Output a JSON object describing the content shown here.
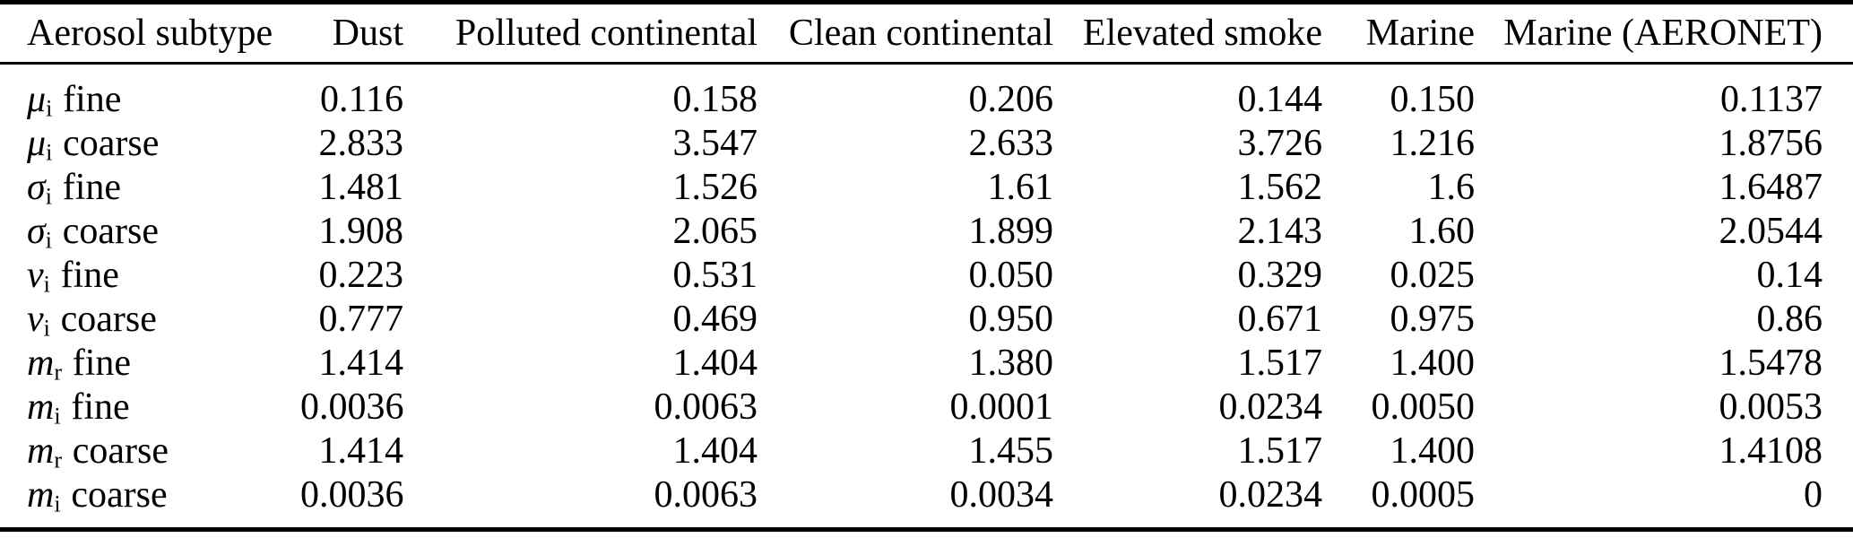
{
  "page": {
    "background_color": "#ffffff",
    "text_color": "#000000"
  },
  "table": {
    "header": [
      "Aerosol subtype",
      "Dust",
      "Polluted continental",
      "Clean continental",
      "Elevated smoke",
      "Marine",
      "Marine (AERONET)"
    ],
    "rows": [
      {
        "symbol": "μ",
        "subscript": "i",
        "mode": "fine",
        "values": [
          "0.116",
          "0.158",
          "0.206",
          "0.144",
          "0.150",
          "0.1137"
        ]
      },
      {
        "symbol": "μ",
        "subscript": "i",
        "mode": "coarse",
        "values": [
          "2.833",
          "3.547",
          "2.633",
          "3.726",
          "1.216",
          "1.8756"
        ]
      },
      {
        "symbol": "σ",
        "subscript": "i",
        "mode": "fine",
        "values": [
          "1.481",
          "1.526",
          "1.61",
          "1.562",
          "1.6",
          "1.6487"
        ]
      },
      {
        "symbol": "σ",
        "subscript": "i",
        "mode": "coarse",
        "values": [
          "1.908",
          "2.065",
          "1.899",
          "2.143",
          "1.60",
          "2.0544"
        ]
      },
      {
        "symbol": "ν",
        "subscript": "i",
        "mode": "fine",
        "values": [
          "0.223",
          "0.531",
          "0.050",
          "0.329",
          "0.025",
          "0.14"
        ]
      },
      {
        "symbol": "ν",
        "subscript": "i",
        "mode": "coarse",
        "values": [
          "0.777",
          "0.469",
          "0.950",
          "0.671",
          "0.975",
          "0.86"
        ]
      },
      {
        "symbol": "m",
        "subscript": "r",
        "mode": "fine",
        "values": [
          "1.414",
          "1.404",
          "1.380",
          "1.517",
          "1.400",
          "1.5478"
        ]
      },
      {
        "symbol": "m",
        "subscript": "i",
        "mode": "fine",
        "values": [
          "0.0036",
          "0.0063",
          "0.0001",
          "0.0234",
          "0.0050",
          "0.0053"
        ]
      },
      {
        "symbol": "m",
        "subscript": "r",
        "mode": "coarse",
        "values": [
          "1.414",
          "1.404",
          "1.455",
          "1.517",
          "1.400",
          "1.4108"
        ]
      },
      {
        "symbol": "m",
        "subscript": "i",
        "mode": "coarse",
        "values": [
          "0.0036",
          "0.0063",
          "0.0034",
          "0.0234",
          "0.0005",
          "0"
        ]
      }
    ]
  }
}
